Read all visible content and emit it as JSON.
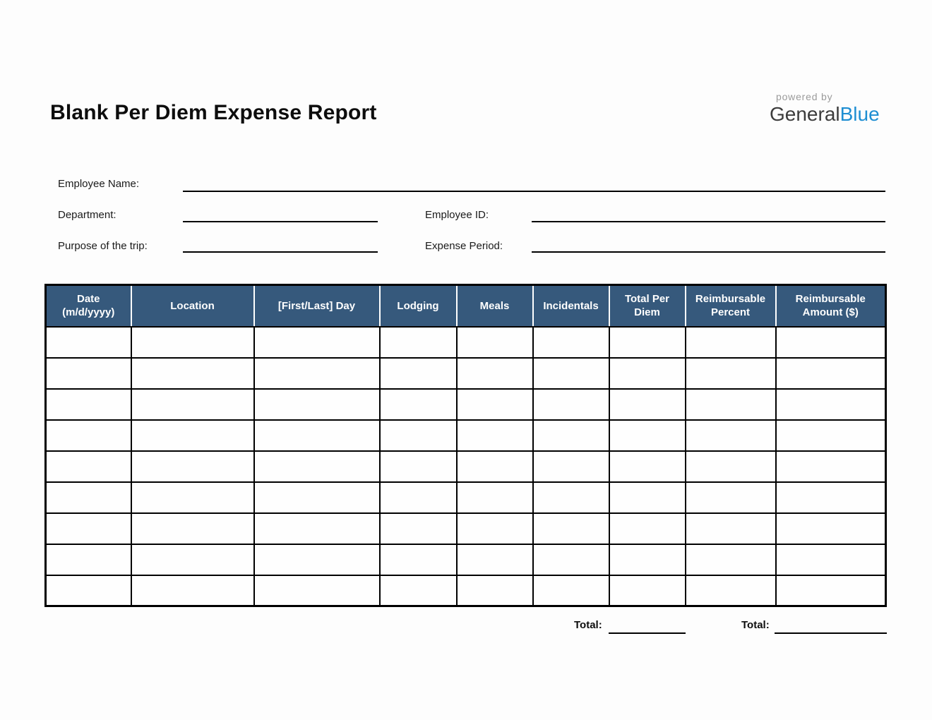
{
  "page": {
    "title": "Blank Per Diem Expense Report"
  },
  "logo": {
    "powered_by": "powered by",
    "brand_part1": "General",
    "brand_part2": "Blue",
    "brand_blue_color": "#1e8ed2"
  },
  "form": {
    "employee_name_label": "Employee Name:",
    "department_label": "Department:",
    "employee_id_label": "Employee ID:",
    "purpose_label": "Purpose of the trip:",
    "expense_period_label": "Expense Period:"
  },
  "table": {
    "header_bg": "#36597c",
    "columns": [
      "Date\n(m/d/yyyy)",
      "Location",
      "[First/Last] Day",
      "Lodging",
      "Meals",
      "Incidentals",
      "Total Per\nDiem",
      "Reimbursable\nPercent",
      "Reimbursable\nAmount ($)"
    ],
    "row_count": 9
  },
  "totals": {
    "per_diem_label": "Total:",
    "reimbursable_label": "Total:"
  }
}
